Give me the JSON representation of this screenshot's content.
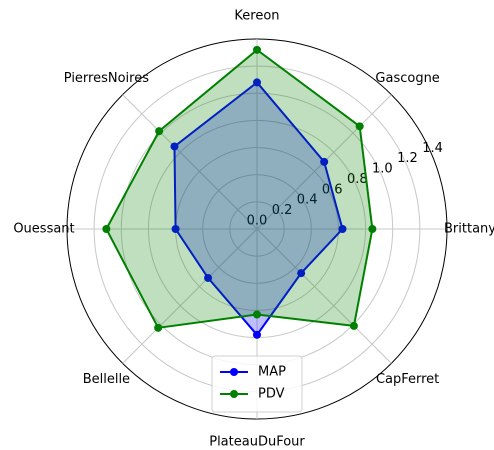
{
  "chart_data": {
    "type": "radar",
    "categories": [
      "Brittany",
      "Gascogne",
      "Kereon",
      "PierresNoires",
      "Ouessant",
      "Bellelle",
      "PlateauDuFour",
      "CapFerret"
    ],
    "series": [
      {
        "name": "MAP",
        "color": "#0000ff",
        "values": [
          0.63,
          0.7,
          1.08,
          0.86,
          0.6,
          0.51,
          0.78,
          0.46
        ]
      },
      {
        "name": "PDV",
        "color": "#008000",
        "values": [
          0.85,
          1.07,
          1.32,
          1.02,
          1.11,
          1.03,
          0.63,
          1.01
        ]
      }
    ],
    "ylim": [
      0,
      1.4
    ],
    "yticks": [
      {
        "value": 0,
        "label": "0.0"
      },
      {
        "value": 0.2,
        "label": "0.2"
      },
      {
        "value": 0.4,
        "label": "0.4"
      },
      {
        "value": 0.6,
        "label": "0.6"
      },
      {
        "value": 0.8,
        "label": "0.8"
      },
      {
        "value": 1.0,
        "label": "1.0"
      },
      {
        "value": 1.2,
        "label": "1.2"
      },
      {
        "value": 1.4,
        "label": "1.4"
      }
    ],
    "grid": true,
    "legend": "lower center"
  }
}
